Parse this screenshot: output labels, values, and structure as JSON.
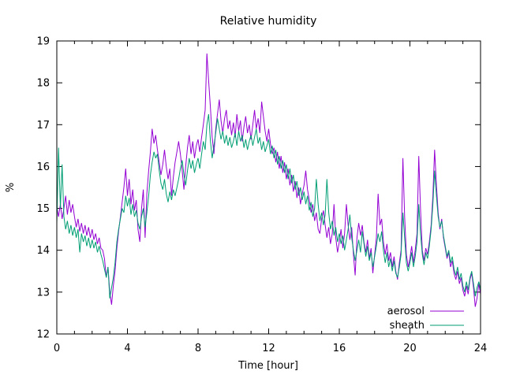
{
  "chart_data": {
    "type": "line",
    "title": "Relative humidity",
    "xlabel": "Time [hour]",
    "ylabel": "%",
    "xlim": [
      0,
      24
    ],
    "ylim": [
      12,
      19
    ],
    "x_major_ticks": [
      0,
      4,
      8,
      12,
      16,
      20,
      24
    ],
    "x_minor_step": 1,
    "y_major_ticks": [
      12,
      13,
      14,
      15,
      16,
      17,
      18,
      19
    ],
    "grid": false,
    "legend_position": "bottom-right-inside",
    "x_step_hours": 0.1,
    "series": [
      {
        "name": "aerosol",
        "color": "#9400d3",
        "values": [
          15.05,
          14.8,
          15.1,
          14.75,
          15.0,
          15.3,
          14.85,
          15.2,
          14.9,
          15.1,
          14.8,
          14.55,
          14.75,
          14.45,
          14.65,
          14.4,
          14.6,
          14.35,
          14.55,
          14.3,
          14.5,
          14.25,
          14.4,
          14.15,
          14.3,
          14.05,
          14.0,
          13.8,
          13.35,
          13.6,
          13.0,
          12.7,
          13.15,
          13.5,
          14.05,
          14.45,
          14.8,
          15.15,
          15.5,
          15.95,
          15.3,
          15.7,
          15.1,
          15.45,
          14.95,
          15.2,
          14.5,
          14.2,
          15.0,
          15.45,
          14.3,
          15.35,
          15.9,
          16.35,
          16.9,
          16.55,
          16.75,
          16.4,
          16.1,
          15.8,
          16.05,
          16.4,
          16.0,
          15.7,
          15.95,
          15.3,
          15.75,
          16.1,
          16.35,
          16.6,
          16.3,
          15.9,
          15.45,
          16.0,
          16.45,
          16.75,
          16.3,
          16.6,
          16.2,
          16.5,
          16.65,
          16.35,
          16.7,
          17.0,
          17.35,
          18.7,
          18.05,
          17.4,
          16.7,
          16.3,
          16.9,
          17.25,
          17.6,
          17.1,
          16.8,
          17.15,
          17.35,
          16.9,
          17.1,
          16.75,
          17.05,
          16.7,
          17.25,
          16.85,
          17.1,
          16.6,
          16.95,
          17.2,
          16.8,
          17.0,
          16.65,
          17.0,
          17.35,
          16.9,
          17.15,
          16.8,
          17.55,
          17.2,
          16.85,
          16.6,
          16.9,
          16.55,
          16.3,
          16.45,
          16.1,
          16.35,
          15.95,
          16.25,
          15.85,
          16.1,
          15.7,
          15.95,
          15.55,
          15.8,
          15.4,
          15.65,
          15.25,
          15.5,
          15.1,
          15.35,
          15.55,
          15.9,
          15.45,
          15.2,
          14.9,
          15.1,
          14.7,
          14.9,
          14.5,
          14.4,
          14.75,
          14.95,
          14.6,
          14.3,
          14.55,
          14.15,
          14.4,
          15.1,
          14.3,
          13.95,
          14.2,
          14.5,
          14.05,
          14.4,
          15.1,
          14.6,
          14.25,
          14.55,
          13.9,
          13.4,
          14.3,
          14.65,
          14.35,
          14.6,
          14.2,
          13.95,
          14.25,
          13.8,
          14.05,
          13.45,
          13.9,
          14.3,
          15.35,
          14.6,
          14.75,
          14.2,
          13.9,
          14.15,
          13.75,
          13.95,
          13.6,
          13.85,
          13.5,
          13.3,
          13.7,
          14.0,
          16.2,
          14.8,
          13.9,
          13.6,
          13.8,
          14.1,
          13.7,
          14.0,
          14.4,
          16.25,
          15.0,
          14.0,
          13.75,
          14.05,
          13.9,
          14.2,
          14.6,
          15.3,
          16.4,
          15.55,
          14.9,
          14.5,
          14.75,
          14.3,
          14.05,
          13.8,
          13.95,
          13.6,
          13.75,
          13.45,
          13.3,
          13.5,
          13.2,
          13.35,
          13.05,
          12.9,
          13.15,
          12.95,
          13.3,
          13.45,
          13.1,
          12.65,
          12.85,
          13.2,
          12.95
        ]
      },
      {
        "name": "sheath",
        "color": "#009e73",
        "values": [
          14.65,
          16.45,
          15.0,
          16.05,
          14.8,
          14.5,
          14.7,
          14.4,
          14.6,
          14.35,
          14.55,
          14.3,
          14.5,
          13.95,
          14.4,
          14.2,
          14.35,
          14.1,
          14.3,
          14.05,
          14.25,
          14.05,
          14.2,
          13.95,
          14.1,
          13.9,
          13.75,
          13.55,
          13.35,
          13.6,
          12.85,
          13.1,
          13.35,
          13.7,
          14.2,
          14.5,
          14.75,
          15.0,
          14.9,
          15.3,
          15.05,
          15.25,
          14.85,
          15.1,
          14.8,
          14.95,
          14.65,
          14.5,
          14.8,
          15.0,
          14.55,
          14.9,
          15.3,
          15.8,
          16.1,
          16.35,
          16.2,
          16.3,
          15.9,
          15.6,
          15.45,
          15.7,
          15.35,
          15.15,
          15.4,
          15.2,
          15.45,
          15.3,
          15.5,
          15.7,
          15.95,
          16.15,
          15.8,
          15.55,
          15.9,
          16.2,
          15.95,
          16.15,
          15.85,
          16.05,
          16.2,
          15.95,
          16.3,
          16.6,
          16.4,
          17.0,
          17.25,
          16.6,
          16.2,
          16.5,
          16.8,
          17.15,
          16.9,
          16.65,
          16.85,
          16.55,
          16.75,
          16.5,
          16.7,
          16.45,
          16.6,
          16.8,
          16.5,
          16.85,
          16.6,
          16.75,
          16.45,
          16.65,
          16.4,
          16.6,
          16.75,
          16.5,
          16.7,
          16.9,
          16.55,
          16.7,
          16.4,
          16.6,
          16.35,
          16.5,
          16.65,
          16.3,
          16.5,
          16.2,
          16.4,
          16.05,
          16.25,
          15.95,
          16.15,
          15.85,
          16.05,
          15.7,
          15.95,
          15.6,
          15.8,
          15.45,
          15.65,
          15.3,
          15.5,
          15.2,
          15.4,
          15.1,
          15.3,
          14.95,
          15.15,
          14.8,
          15.0,
          15.7,
          15.1,
          14.7,
          14.9,
          14.6,
          14.85,
          15.7,
          14.9,
          14.5,
          14.7,
          14.35,
          14.55,
          14.2,
          14.4,
          14.15,
          14.35,
          14.0,
          14.25,
          14.5,
          14.85,
          14.3,
          14.0,
          13.75,
          14.0,
          14.25,
          13.95,
          14.45,
          14.15,
          13.85,
          14.1,
          13.75,
          13.95,
          13.6,
          13.85,
          14.1,
          14.4,
          14.2,
          14.45,
          14.0,
          13.7,
          13.95,
          13.6,
          13.8,
          13.5,
          13.75,
          13.45,
          13.35,
          13.6,
          13.9,
          14.9,
          14.3,
          13.7,
          13.5,
          13.7,
          13.95,
          13.6,
          13.85,
          14.2,
          15.1,
          14.4,
          13.9,
          13.65,
          13.95,
          13.8,
          14.1,
          14.5,
          15.1,
          15.9,
          15.3,
          14.8,
          14.55,
          14.7,
          14.35,
          14.1,
          13.85,
          14.0,
          13.7,
          13.85,
          13.55,
          13.4,
          13.6,
          13.3,
          13.45,
          13.15,
          13.0,
          13.25,
          13.05,
          13.35,
          13.5,
          13.2,
          12.9,
          13.1,
          13.25,
          13.05
        ]
      }
    ]
  }
}
